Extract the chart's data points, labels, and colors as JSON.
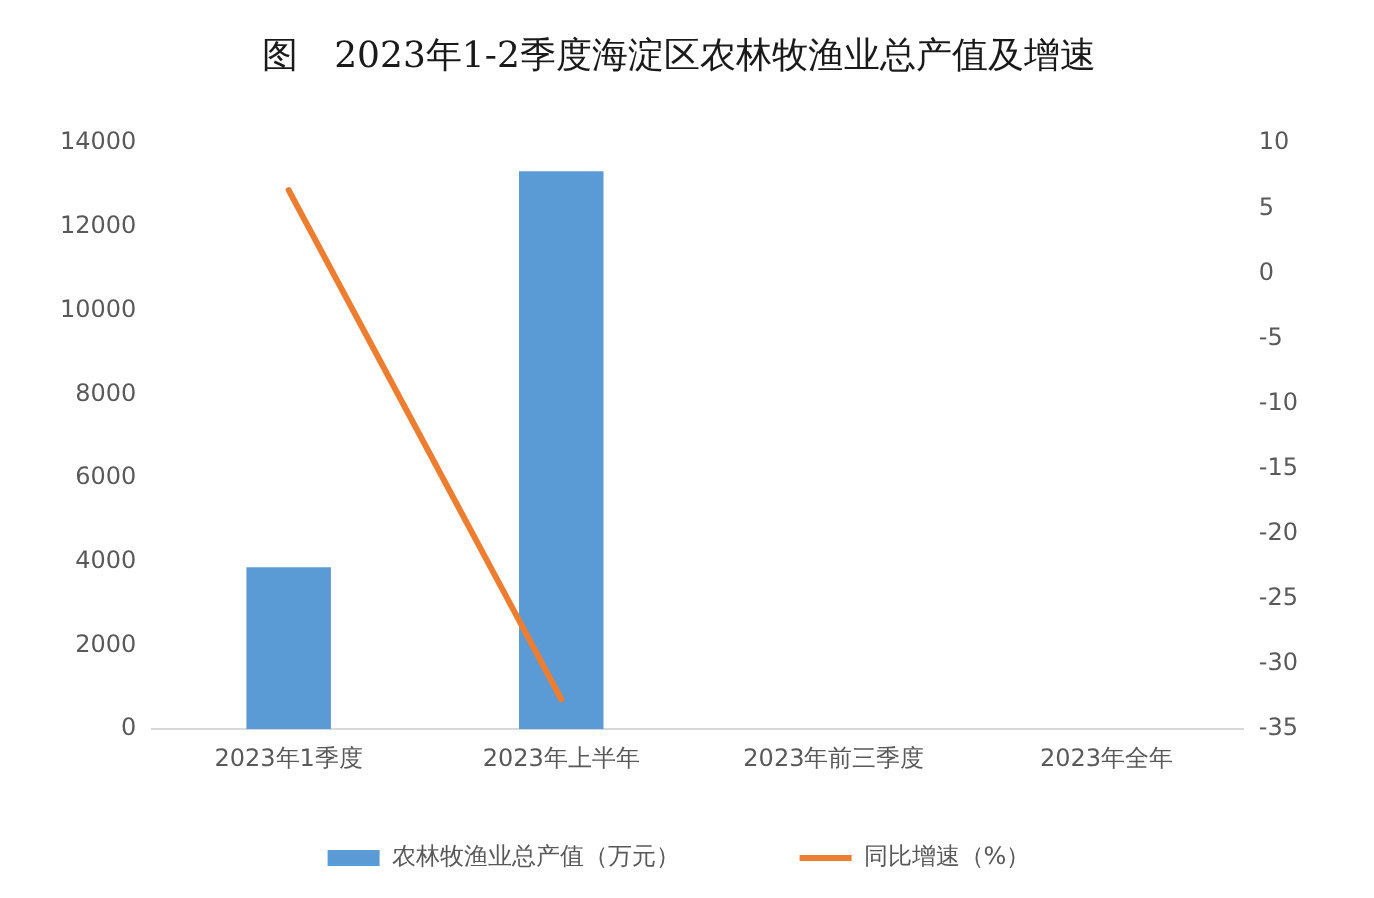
{
  "chart_data": {
    "type": "bar",
    "title": "图　2023年1-2季度海淀区农林牧渔业总产值及增速",
    "categories": [
      "2023年1季度",
      "2023年上半年",
      "2023年前三季度",
      "2023年全年"
    ],
    "series": [
      {
        "name": "农林牧渔业总产值（万元）",
        "color": "#5b9bd5",
        "values": [
          3870,
          13330,
          null,
          null
        ]
      },
      {
        "name": "同比增速（%）",
        "type": "line",
        "color": "#ed7d31",
        "axis": "y2",
        "values": [
          6.4,
          -32.7,
          null,
          null
        ]
      }
    ],
    "ylim": [
      0,
      14000
    ],
    "yticks": [
      0,
      2000,
      4000,
      6000,
      8000,
      10000,
      12000,
      14000
    ],
    "y2lim": [
      -35,
      10
    ],
    "y2ticks": [
      -35,
      -30,
      -25,
      -20,
      -15,
      -10,
      -5,
      0,
      5,
      10
    ],
    "legend": "bottom"
  }
}
